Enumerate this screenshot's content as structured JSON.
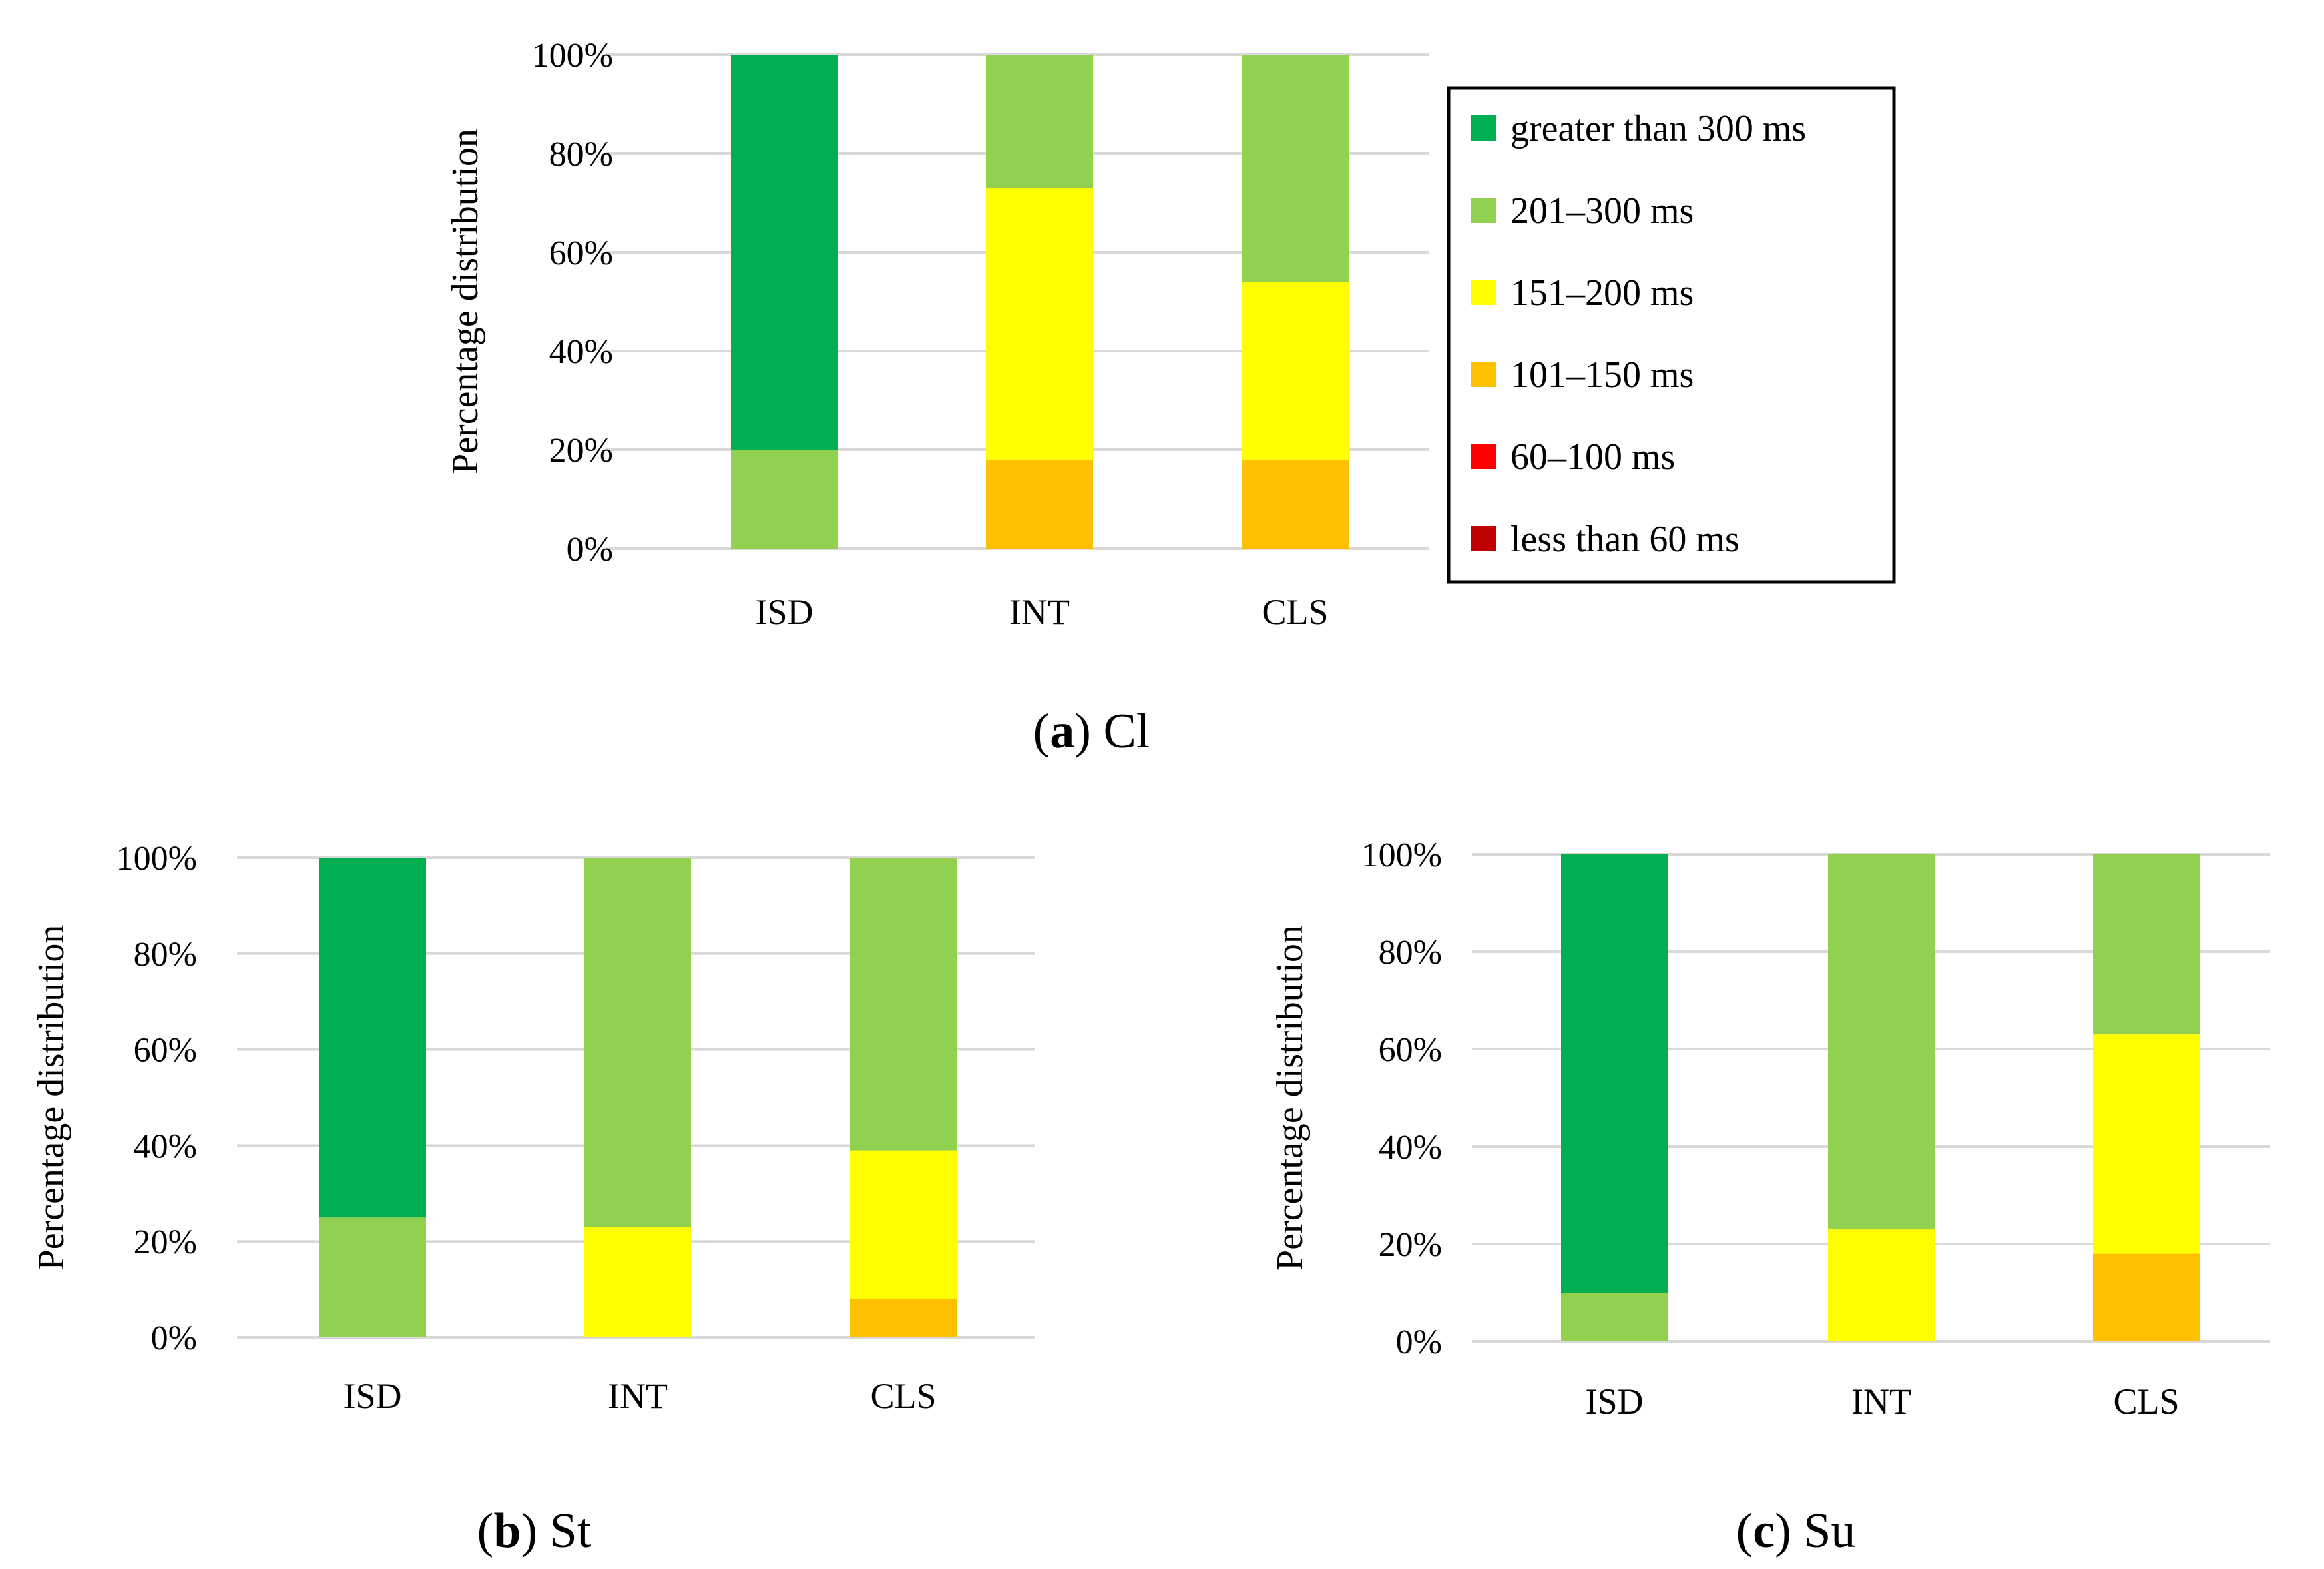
{
  "legend": [
    {
      "label": "greater than 300 ms",
      "color": "#00b050"
    },
    {
      "label": "201–300 ms",
      "color": "#92d050"
    },
    {
      "label": "151–200 ms",
      "color": "#ffff00"
    },
    {
      "label": "101–150 ms",
      "color": "#ffc000"
    },
    {
      "label": "60–100 ms",
      "color": "#ff0000"
    },
    {
      "label": "less than 60 ms",
      "color": "#c00000"
    }
  ],
  "chart_data": [
    {
      "type": "bar",
      "stacked": true,
      "caption": {
        "letter": "a",
        "name": "Cl"
      },
      "ylabel": "Percentage distribution",
      "categories": [
        "ISD",
        "INT",
        "CLS"
      ],
      "yticks": [
        "0%",
        "20%",
        "40%",
        "60%",
        "80%",
        "100%"
      ],
      "ylim": [
        0,
        100
      ],
      "grid": true,
      "legend_position": "right",
      "series": [
        {
          "name": "less than 60 ms",
          "values": [
            0,
            0,
            0
          ]
        },
        {
          "name": "60–100 ms",
          "values": [
            0,
            0,
            0
          ]
        },
        {
          "name": "101–150 ms",
          "values": [
            0,
            18,
            18
          ]
        },
        {
          "name": "151–200 ms",
          "values": [
            0,
            55,
            36
          ]
        },
        {
          "name": "201–300 ms",
          "values": [
            20,
            27,
            46
          ]
        },
        {
          "name": "greater than 300 ms",
          "values": [
            80,
            0,
            0
          ]
        }
      ]
    },
    {
      "type": "bar",
      "stacked": true,
      "caption": {
        "letter": "b",
        "name": "St"
      },
      "ylabel": "Percentage distribution",
      "categories": [
        "ISD",
        "INT",
        "CLS"
      ],
      "yticks": [
        "0%",
        "20%",
        "40%",
        "60%",
        "80%",
        "100%"
      ],
      "ylim": [
        0,
        100
      ],
      "grid": true,
      "series": [
        {
          "name": "less than 60 ms",
          "values": [
            0,
            0,
            0
          ]
        },
        {
          "name": "60–100 ms",
          "values": [
            0,
            0,
            0
          ]
        },
        {
          "name": "101–150 ms",
          "values": [
            0,
            0,
            8
          ]
        },
        {
          "name": "151–200 ms",
          "values": [
            0,
            23,
            31
          ]
        },
        {
          "name": "201–300 ms",
          "values": [
            25,
            77,
            61
          ]
        },
        {
          "name": "greater than 300 ms",
          "values": [
            75,
            0,
            0
          ]
        }
      ]
    },
    {
      "type": "bar",
      "stacked": true,
      "caption": {
        "letter": "c",
        "name": "Su"
      },
      "ylabel": "Percentage distribution",
      "categories": [
        "ISD",
        "INT",
        "CLS"
      ],
      "yticks": [
        "0%",
        "20%",
        "40%",
        "60%",
        "80%",
        "100%"
      ],
      "ylim": [
        0,
        100
      ],
      "grid": true,
      "series": [
        {
          "name": "less than 60 ms",
          "values": [
            0,
            0,
            0
          ]
        },
        {
          "name": "60–100 ms",
          "values": [
            0,
            0,
            0
          ]
        },
        {
          "name": "101–150 ms",
          "values": [
            0,
            0,
            18
          ]
        },
        {
          "name": "151–200 ms",
          "values": [
            0,
            23,
            45
          ]
        },
        {
          "name": "201–300 ms",
          "values": [
            10,
            77,
            37
          ]
        },
        {
          "name": "greater than 300 ms",
          "values": [
            90,
            0,
            0
          ]
        }
      ]
    }
  ]
}
